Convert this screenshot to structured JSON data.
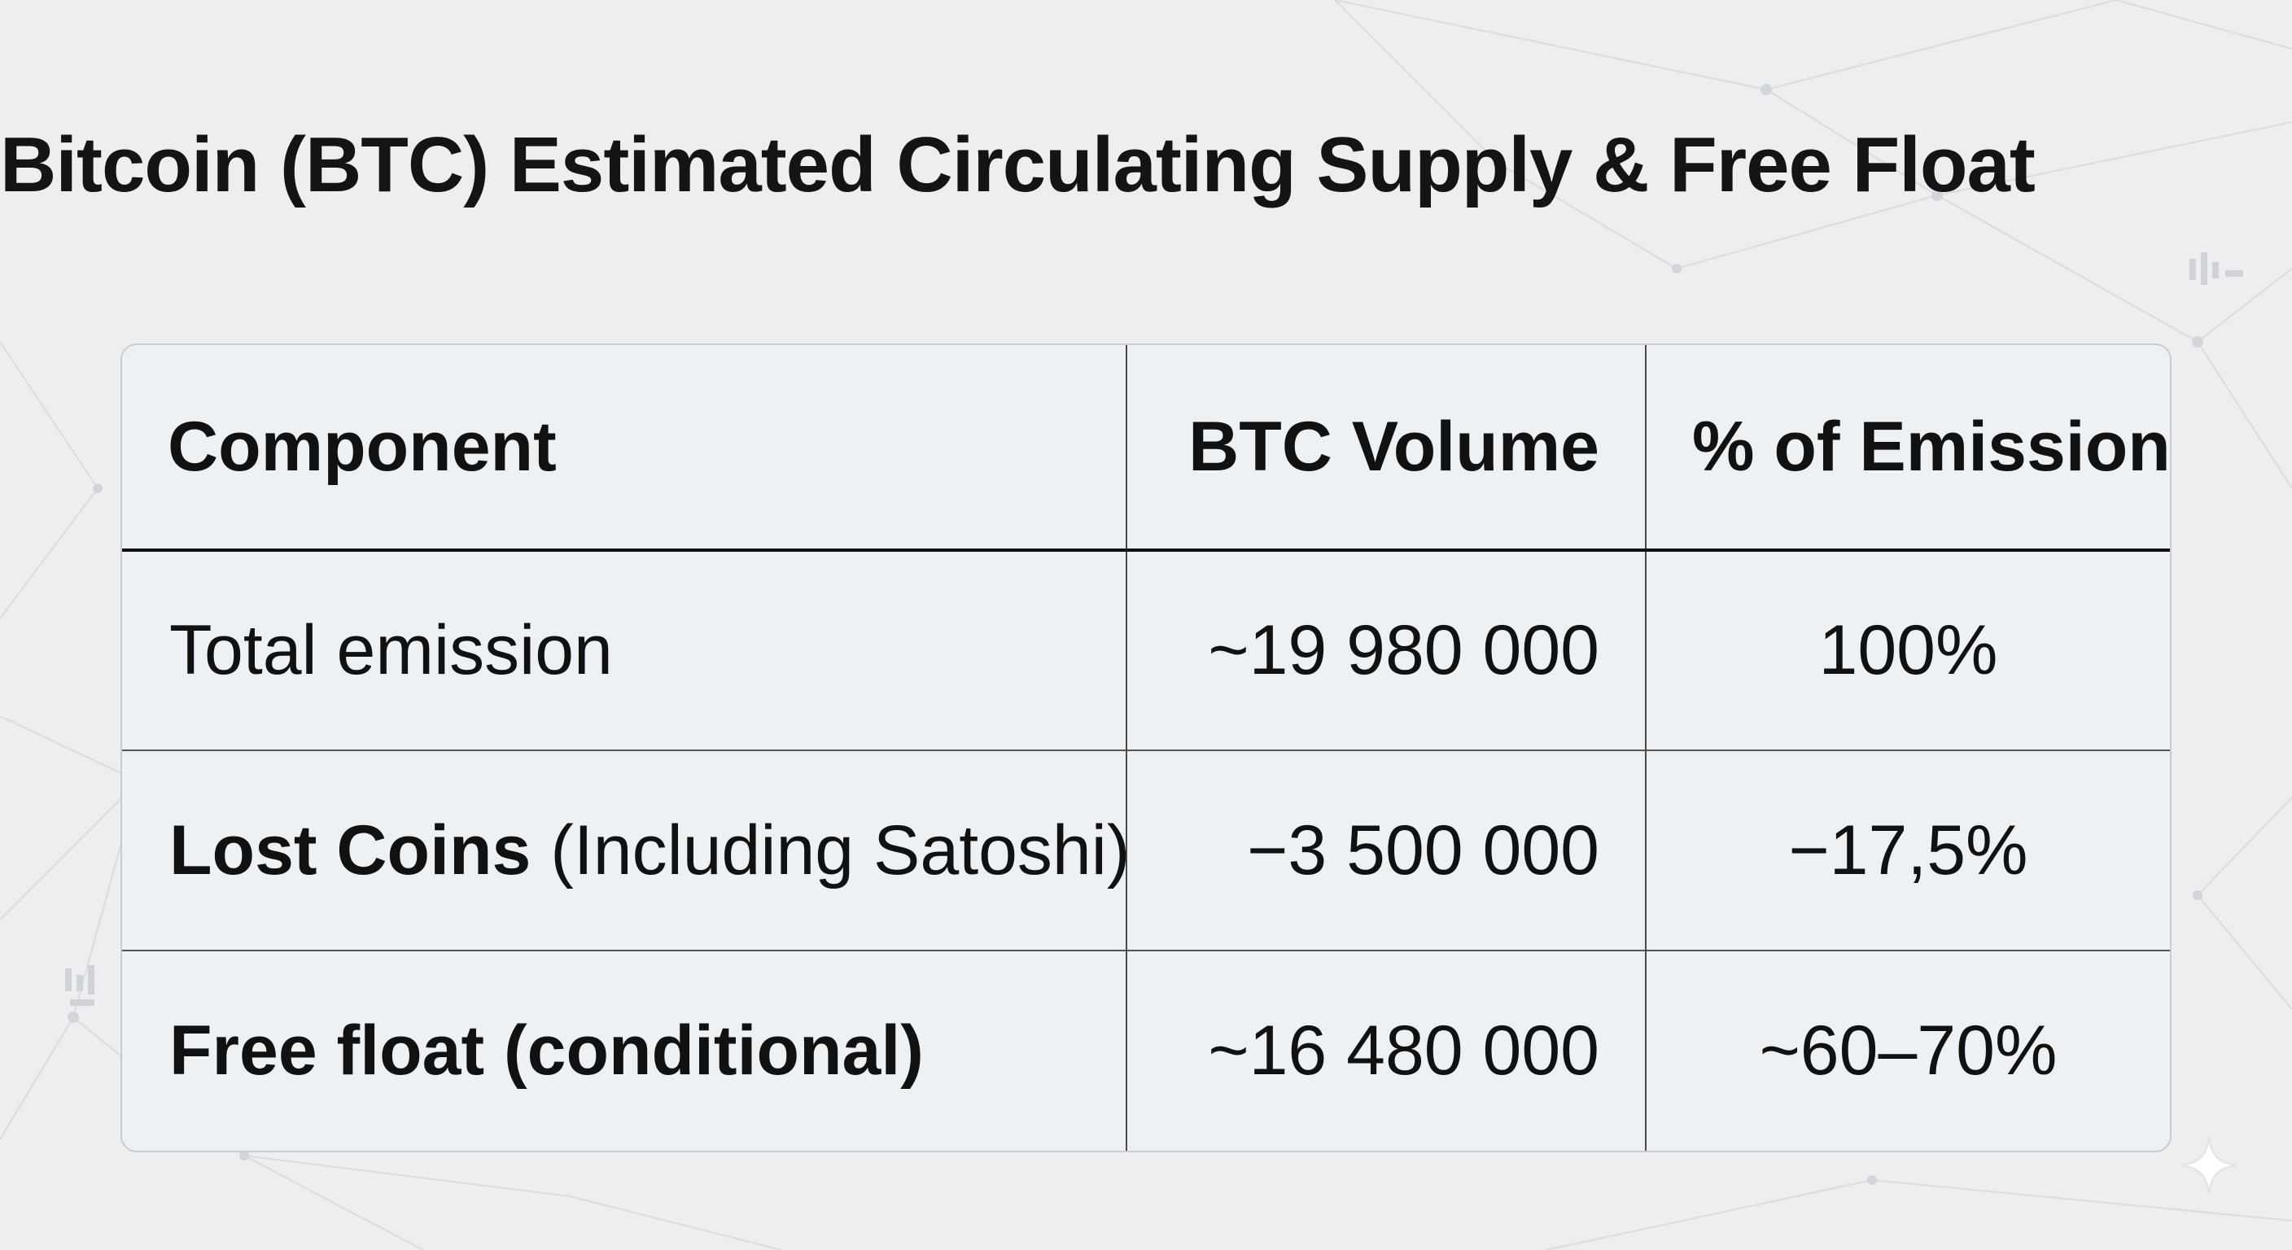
{
  "page": {
    "title": "Bitcoin (BTC) Estimated Circulating Supply & Free Float"
  },
  "chart_data": {
    "type": "table",
    "title": "Bitcoin (BTC) Estimated Circulating Supply & Free Float",
    "columns": [
      "Component",
      "BTC Volume",
      "% of Emission"
    ],
    "rows": [
      {
        "component_main": "Total emission",
        "component_note": "",
        "btc_volume": "~19 980 000",
        "pct_emission": "100%"
      },
      {
        "component_main": "Lost Coins",
        "component_note": "(Including Satoshi)",
        "btc_volume": "−3 500 000",
        "pct_emission": "−17,5%"
      },
      {
        "component_main": "Free float (conditional)",
        "component_note": "",
        "btc_volume": "~16 480 000",
        "pct_emission": "~60–70%"
      }
    ]
  },
  "colors": {
    "background": "#eceef0",
    "table_fill": "#eef1f4",
    "text": "#111111",
    "grid_line": "#4a4a4a",
    "network_line": "#d6d9dd"
  }
}
